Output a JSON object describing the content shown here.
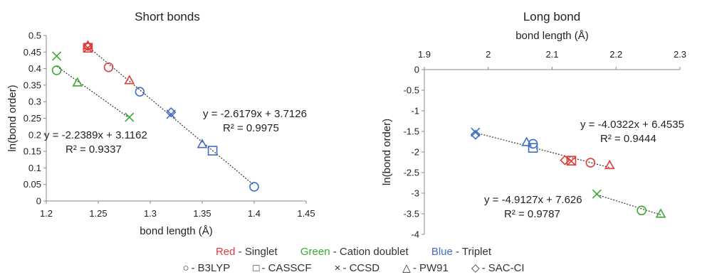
{
  "chart_data": [
    {
      "type": "scatter",
      "title": "Short bonds",
      "xlabel": "bond length (Å)",
      "ylabel": "ln(bond order)",
      "xlim": [
        1.2,
        1.45
      ],
      "ylim": [
        0,
        0.5
      ],
      "xticks": [
        "1.2",
        "1.25",
        "1.3",
        "1.35",
        "1.4",
        "1.45"
      ],
      "yticks": [
        "0",
        "0.05",
        "0.1",
        "0.15",
        "0.2",
        "0.25",
        "0.3",
        "0.35",
        "0.4",
        "0.45",
        "0.5"
      ],
      "grid": false,
      "points": [
        {
          "x": 1.24,
          "y": 0.47,
          "color": "red",
          "marker": "triangle"
        },
        {
          "x": 1.24,
          "y": 0.468,
          "color": "red",
          "marker": "diamond"
        },
        {
          "x": 1.24,
          "y": 0.463,
          "color": "red",
          "marker": "square"
        },
        {
          "x": 1.24,
          "y": 0.462,
          "color": "red",
          "marker": "cross"
        },
        {
          "x": 1.26,
          "y": 0.404,
          "color": "red",
          "marker": "circle"
        },
        {
          "x": 1.28,
          "y": 0.365,
          "color": "red",
          "marker": "triangle"
        },
        {
          "x": 1.29,
          "y": 0.33,
          "color": "blue",
          "marker": "circle"
        },
        {
          "x": 1.32,
          "y": 0.268,
          "color": "blue",
          "marker": "diamond"
        },
        {
          "x": 1.32,
          "y": 0.262,
          "color": "blue",
          "marker": "cross"
        },
        {
          "x": 1.35,
          "y": 0.172,
          "color": "blue",
          "marker": "triangle"
        },
        {
          "x": 1.36,
          "y": 0.152,
          "color": "blue",
          "marker": "square"
        },
        {
          "x": 1.4,
          "y": 0.043,
          "color": "blue",
          "marker": "circle"
        },
        {
          "x": 1.21,
          "y": 0.438,
          "color": "green",
          "marker": "cross"
        },
        {
          "x": 1.21,
          "y": 0.395,
          "color": "green",
          "marker": "circle"
        },
        {
          "x": 1.23,
          "y": 0.358,
          "color": "green",
          "marker": "triangle"
        },
        {
          "x": 1.28,
          "y": 0.253,
          "color": "green",
          "marker": "cross"
        }
      ],
      "trendlines": [
        {
          "slope": -2.6179,
          "intercept": 3.7126,
          "xrange": [
            1.24,
            1.4
          ],
          "equation": "y = -2.6179x + 3.7126",
          "r2": "R² = 0.9975"
        },
        {
          "slope": -2.2389,
          "intercept": 3.1162,
          "xrange": [
            1.21,
            1.28
          ],
          "equation": "y = -2.2389x + 3.1162",
          "r2": "R² = 0.9337"
        }
      ]
    },
    {
      "type": "scatter",
      "title": "Long bond",
      "xlabel": "bond length (Å)",
      "ylabel": "ln(bond order)",
      "xaxis_position": "top",
      "xlim": [
        1.9,
        2.3
      ],
      "ylim": [
        -4,
        0
      ],
      "xticks": [
        "1.9",
        "2",
        "2.1",
        "2.2",
        "2.3"
      ],
      "yticks": [
        "0",
        "-0.5",
        "-1",
        "-1.5",
        "-2",
        "-2.5",
        "-3",
        "-3.5",
        "-4"
      ],
      "grid": false,
      "points": [
        {
          "x": 1.98,
          "y": -1.52,
          "color": "blue",
          "marker": "cross"
        },
        {
          "x": 1.98,
          "y": -1.58,
          "color": "blue",
          "marker": "diamond"
        },
        {
          "x": 2.06,
          "y": -1.76,
          "color": "blue",
          "marker": "triangle"
        },
        {
          "x": 2.07,
          "y": -1.8,
          "color": "blue",
          "marker": "circle"
        },
        {
          "x": 2.07,
          "y": -1.9,
          "color": "blue",
          "marker": "square"
        },
        {
          "x": 2.12,
          "y": -2.2,
          "color": "red",
          "marker": "diamond"
        },
        {
          "x": 2.13,
          "y": -2.21,
          "color": "red",
          "marker": "square"
        },
        {
          "x": 2.13,
          "y": -2.22,
          "color": "red",
          "marker": "cross"
        },
        {
          "x": 2.16,
          "y": -2.26,
          "color": "red",
          "marker": "circle"
        },
        {
          "x": 2.19,
          "y": -2.32,
          "color": "red",
          "marker": "triangle"
        },
        {
          "x": 2.17,
          "y": -3.02,
          "color": "green",
          "marker": "cross"
        },
        {
          "x": 2.24,
          "y": -3.42,
          "color": "green",
          "marker": "circle"
        },
        {
          "x": 2.27,
          "y": -3.5,
          "color": "green",
          "marker": "triangle"
        }
      ],
      "trendlines": [
        {
          "slope": -4.0322,
          "intercept": 6.4535,
          "xrange": [
            1.98,
            2.19
          ],
          "equation": "y = -4.0322x + 6.4535",
          "r2": "R² = 0.9444"
        },
        {
          "slope": -4.9127,
          "intercept": 7.626,
          "xrange": [
            2.17,
            2.27
          ],
          "equation": "y = -4.9127x + 7.626",
          "r2": "R² = 0.9787"
        }
      ]
    }
  ],
  "legend": {
    "states": [
      {
        "color_word": "Red",
        "label": " - Singlet",
        "color": "#e23b3b"
      },
      {
        "color_word": "Green",
        "label": " - Cation doublet",
        "color": "#3aaa35"
      },
      {
        "color_word": "Blue",
        "label": " - Triplet",
        "color": "#3f6fc2"
      }
    ],
    "methods": [
      {
        "marker": "circle",
        "label": "- B3LYP"
      },
      {
        "marker": "square",
        "label": "- CASSCF"
      },
      {
        "marker": "cross",
        "label": "- CCSD"
      },
      {
        "marker": "triangle",
        "label": "- PW91"
      },
      {
        "marker": "diamond",
        "label": "- SAC-CI"
      }
    ]
  },
  "colors": {
    "red": "#e23b3b",
    "green": "#3aaa35",
    "blue": "#3f6fc2",
    "axis": "#888888",
    "text": "#222222"
  }
}
